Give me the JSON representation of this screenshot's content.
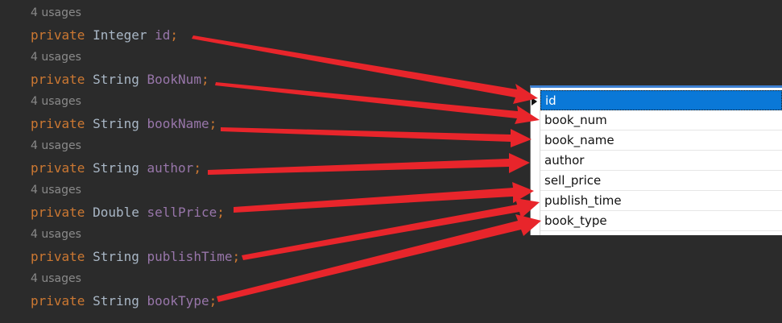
{
  "editor": {
    "usage_label": "4 usages",
    "lines": [
      {
        "keyword": "private",
        "type": "Integer",
        "field": "id",
        "semicolon": ";"
      },
      {
        "keyword": "private",
        "type": "String",
        "field": "BookNum",
        "semicolon": ";"
      },
      {
        "keyword": "private",
        "type": "String",
        "field": "bookName",
        "semicolon": ";"
      },
      {
        "keyword": "private",
        "type": "String",
        "field": "author",
        "semicolon": ";"
      },
      {
        "keyword": "private",
        "type": "Double",
        "field": "sellPrice",
        "semicolon": ";"
      },
      {
        "keyword": "private",
        "type": "String",
        "field": "publishTime",
        "semicolon": ";"
      },
      {
        "keyword": "private",
        "type": "String",
        "field": "bookType",
        "semicolon": ";"
      }
    ]
  },
  "table": {
    "columns": [
      "id",
      "book_num",
      "book_name",
      "author",
      "sell_price",
      "publish_time",
      "book_type"
    ],
    "selected_index": 0
  },
  "colors": {
    "background": "#2b2b2b",
    "keyword": "#cc7832",
    "type": "#a9b7c6",
    "field": "#9876aa",
    "usage": "#8a8a8a",
    "selection": "#0a78d7",
    "arrow": "#e8252b"
  }
}
